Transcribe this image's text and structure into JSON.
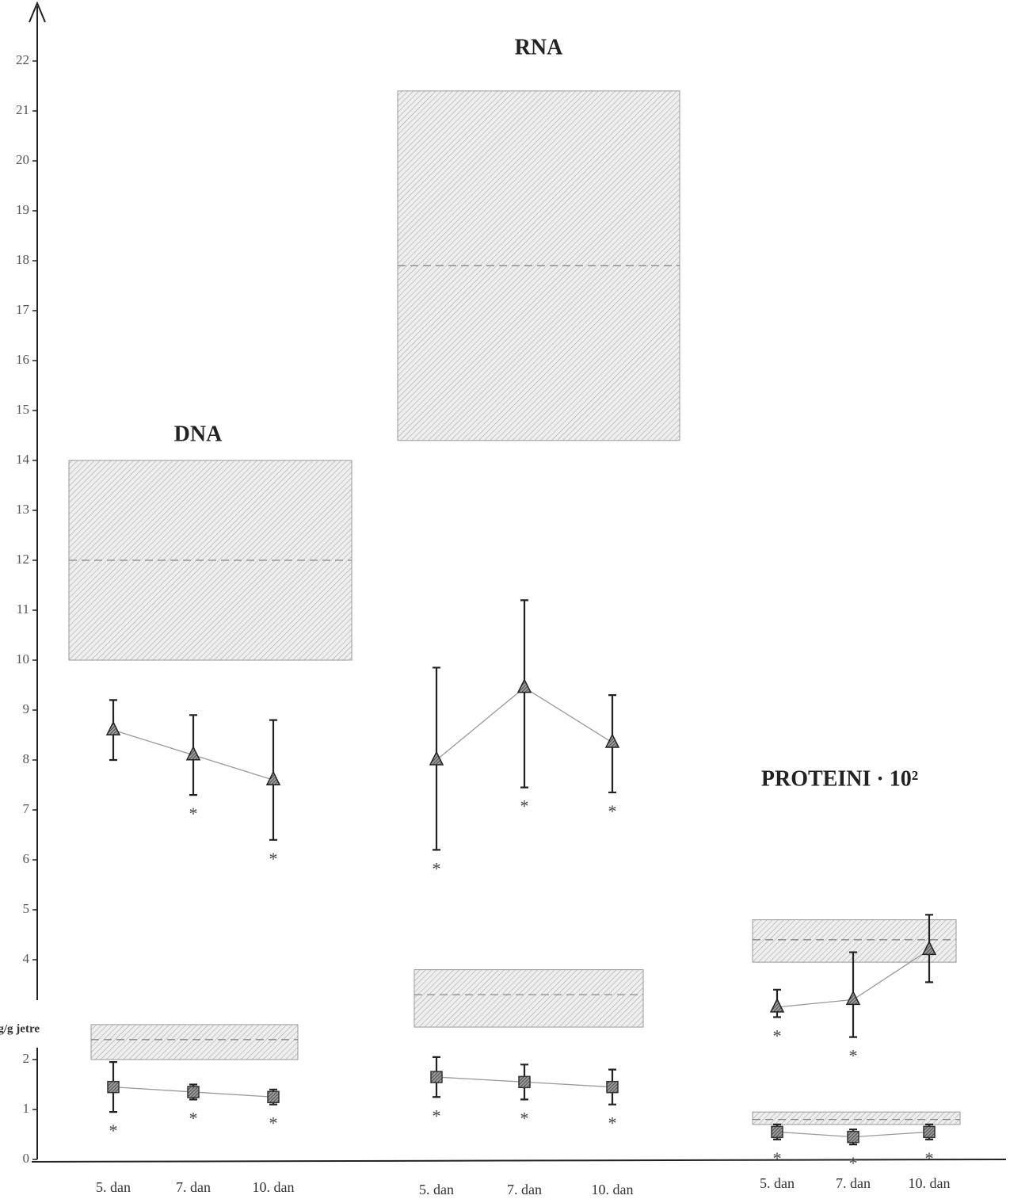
{
  "chart_data": {
    "type": "line",
    "y_label": "mg/g jetre",
    "ylim": [
      0,
      23
    ],
    "yticks": [
      0,
      1,
      2,
      4,
      5,
      6,
      7,
      8,
      9,
      10,
      11,
      12,
      13,
      14,
      15,
      16,
      17,
      18,
      19,
      20,
      21,
      22
    ],
    "asterisk": "*",
    "panels": [
      {
        "title": "DNA",
        "categories": [
          "5. dan",
          "7. dan",
          "10. dan"
        ],
        "series": [
          {
            "marker": "triangle",
            "values": [
              8.6,
              8.1,
              7.6
            ],
            "low": [
              8.0,
              7.3,
              6.4
            ],
            "high": [
              9.2,
              8.9,
              8.8
            ],
            "significant": [
              false,
              true,
              true
            ],
            "control": {
              "low": 10,
              "mean": 12,
              "high": 14
            }
          },
          {
            "marker": "square",
            "values": [
              1.45,
              1.35,
              1.25
            ],
            "low": [
              0.95,
              1.2,
              1.1
            ],
            "high": [
              1.95,
              1.5,
              1.4
            ],
            "significant": [
              true,
              true,
              true
            ],
            "control": {
              "low": 2.0,
              "mean": 2.4,
              "high": 2.7
            }
          }
        ]
      },
      {
        "title": "RNA",
        "categories": [
          "5. dan",
          "7. dan",
          "10. dan"
        ],
        "series": [
          {
            "marker": "triangle",
            "values": [
              8.0,
              9.45,
              8.35
            ],
            "low": [
              6.2,
              7.45,
              7.35
            ],
            "high": [
              9.85,
              11.2,
              9.3
            ],
            "significant": [
              true,
              true,
              true
            ],
            "control": {
              "low": 14.4,
              "mean": 17.9,
              "high": 21.4
            }
          },
          {
            "marker": "square",
            "values": [
              1.65,
              1.55,
              1.45
            ],
            "low": [
              1.25,
              1.2,
              1.1
            ],
            "high": [
              2.05,
              1.9,
              1.8
            ],
            "significant": [
              true,
              true,
              true
            ],
            "control": {
              "low": 2.65,
              "mean": 3.3,
              "high": 3.8
            }
          }
        ]
      },
      {
        "title": "PROTEINI · 10²",
        "categories": [
          "5. dan",
          "7. dan",
          "10. dan"
        ],
        "series": [
          {
            "marker": "triangle",
            "values": [
              3.05,
              3.2,
              4.2
            ],
            "low": [
              2.85,
              2.45,
              3.55
            ],
            "high": [
              3.4,
              4.15,
              4.9
            ],
            "significant": [
              true,
              true,
              false
            ],
            "control": {
              "low": 3.95,
              "mean": 4.4,
              "high": 4.8
            }
          },
          {
            "marker": "square",
            "values": [
              0.55,
              0.45,
              0.55
            ],
            "low": [
              0.4,
              0.3,
              0.4
            ],
            "high": [
              0.7,
              0.6,
              0.7
            ],
            "significant": [
              true,
              true,
              true
            ],
            "control": {
              "low": 0.7,
              "mean": 0.8,
              "high": 0.95
            }
          }
        ]
      }
    ]
  }
}
